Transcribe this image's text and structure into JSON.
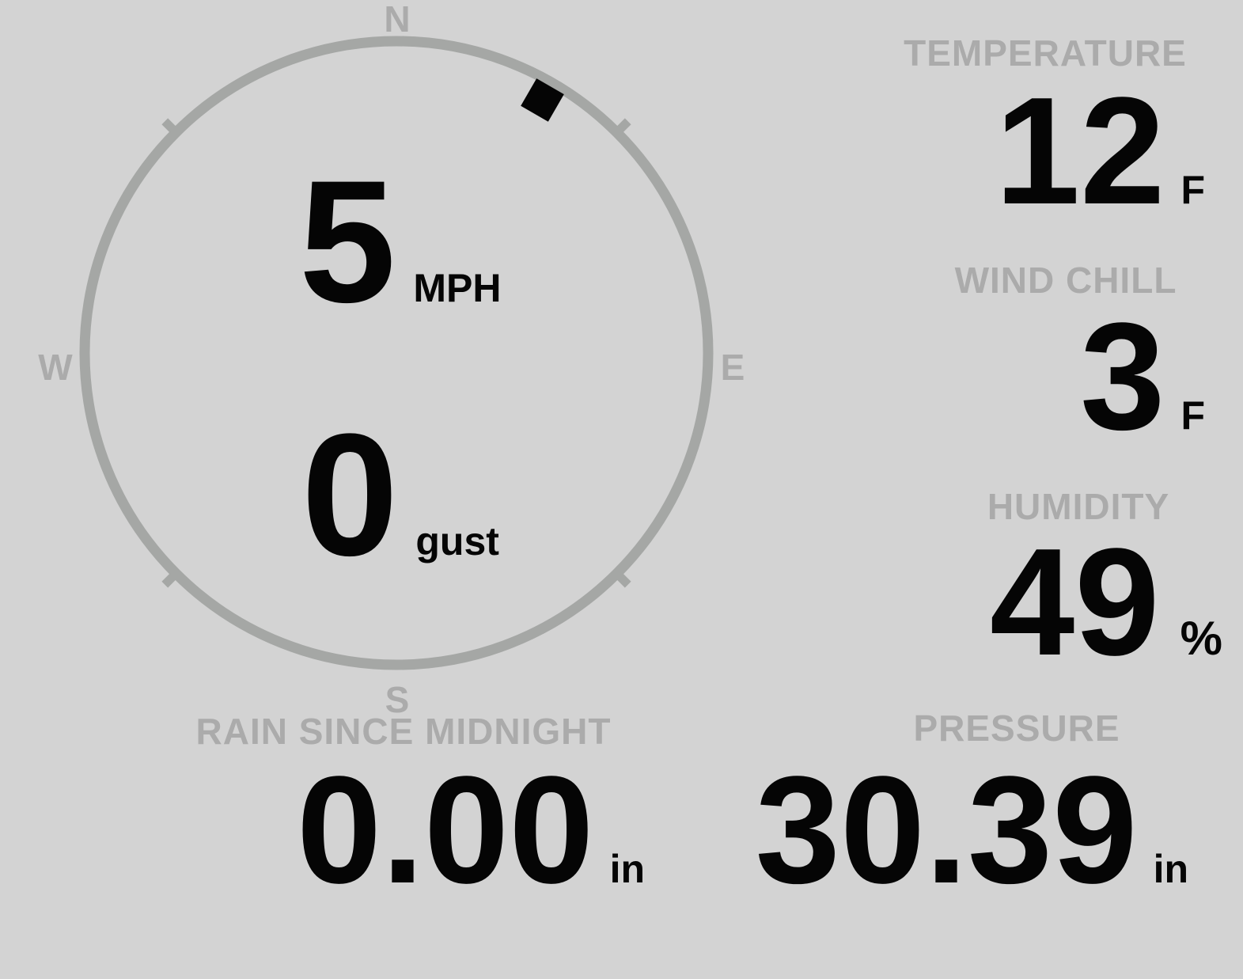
{
  "colors": {
    "background": "#d3d3d3",
    "muted": "#ababab",
    "gauge": "#a5a7a5",
    "value": "#050505"
  },
  "compass": {
    "labels": {
      "north": "N",
      "east": "E",
      "south": "S",
      "west": "W"
    },
    "wind_direction_degrees": 30,
    "speed": {
      "value": "5",
      "unit": "MPH"
    },
    "gust": {
      "value": "0",
      "unit": "gust"
    }
  },
  "metrics": {
    "temperature": {
      "label": "TEMPERATURE",
      "value": "12",
      "unit": "F"
    },
    "wind_chill": {
      "label": "WIND CHILL",
      "value": "3",
      "unit": "F"
    },
    "humidity": {
      "label": "HUMIDITY",
      "value": "49",
      "unit": "%"
    },
    "rain_since_midnight": {
      "label": "RAIN SINCE MIDNIGHT",
      "value": "0.00",
      "unit": "in"
    },
    "pressure": {
      "label": "PRESSURE",
      "value": "30.39",
      "unit": "in"
    }
  }
}
